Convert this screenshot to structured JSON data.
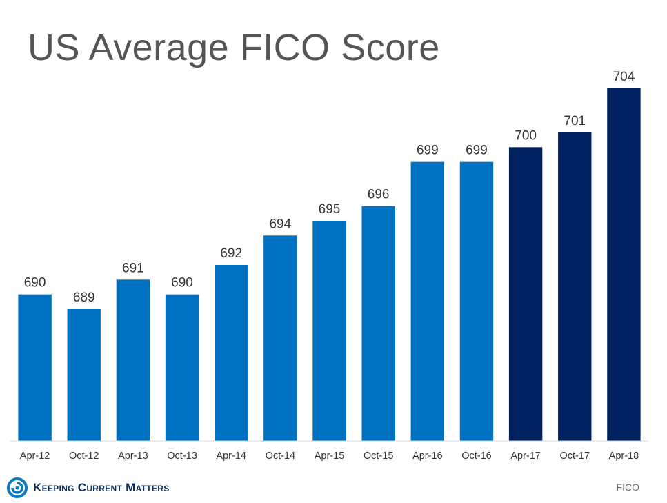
{
  "chart_data": {
    "type": "bar",
    "title": "US Average FICO Score",
    "categories": [
      "Apr-12",
      "Oct-12",
      "Apr-13",
      "Oct-13",
      "Apr-14",
      "Oct-14",
      "Apr-15",
      "Oct-15",
      "Apr-16",
      "Oct-16",
      "Apr-17",
      "Oct-17",
      "Apr-18"
    ],
    "values": [
      690,
      689,
      691,
      690,
      692,
      694,
      695,
      696,
      699,
      699,
      700,
      701,
      704
    ],
    "data_labels": [
      "690",
      "689",
      "691",
      "690",
      "692",
      "694",
      "695",
      "696",
      "699",
      "699",
      "700",
      "701",
      "704"
    ],
    "bar_colors": [
      "#0070c0",
      "#0070c0",
      "#0070c0",
      "#0070c0",
      "#0070c0",
      "#0070c0",
      "#0070c0",
      "#0070c0",
      "#0070c0",
      "#0070c0",
      "#002060",
      "#002060",
      "#002060"
    ],
    "ylim": [
      680,
      704
    ],
    "grid": false,
    "legend": "none"
  },
  "branding": {
    "logo_text": "Keeping Current Matters",
    "logo_icon": "kcm-swirl-icon",
    "logo_color": "#0a7abf"
  },
  "source": "FICO"
}
